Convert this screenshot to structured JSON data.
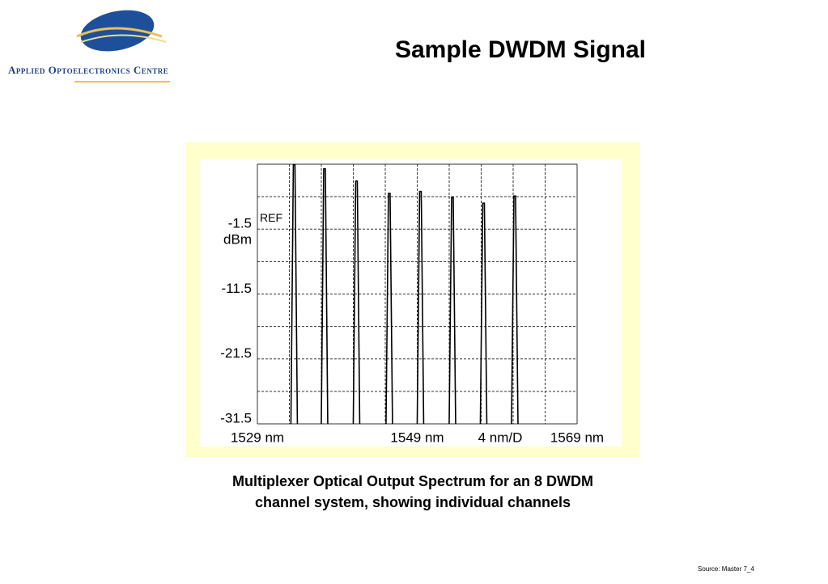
{
  "logo": {
    "text": "Applied Optoelectronics Centre"
  },
  "title": "Sample DWDM Signal",
  "chart_data": {
    "type": "spectrum",
    "x": [
      1533.6,
      1537.4,
      1541.4,
      1545.5,
      1549.4,
      1553.4,
      1557.3,
      1561.2
    ],
    "values": [
      8.4,
      7.8,
      5.9,
      4.0,
      4.3,
      3.4,
      2.5,
      3.6
    ],
    "color": "#000000",
    "xlim": [
      1529,
      1569
    ],
    "ylim": [
      -31.5,
      8.5
    ],
    "xticks": [
      {
        "value": 1529,
        "label": "1529 nm"
      },
      {
        "value": 1549,
        "label": "1549 nm"
      },
      {
        "value": 1569,
        "label": "1569 nm"
      }
    ],
    "yticks": [
      -31.5,
      -21.5,
      -11.5,
      -1.5
    ],
    "xgrid": [
      1529,
      1533,
      1537,
      1541,
      1545,
      1549,
      1553,
      1557,
      1561,
      1565,
      1569
    ],
    "ygrid": [
      -31.5,
      -26.5,
      -21.5,
      -16.5,
      -11.5,
      -6.5,
      -1.5,
      3.5,
      8.5
    ],
    "y_unit": "dBm",
    "ref_label": "REF",
    "x_scale_label": "4 nm/D"
  },
  "caption": [
    "Multiplexer Optical Output Spectrum for an 8 DWDM",
    "channel system, showing individual channels"
  ],
  "footer": "Source: Master  7_4"
}
